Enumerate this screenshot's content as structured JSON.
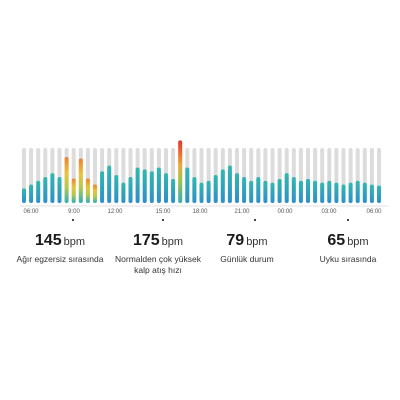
{
  "chart_data": {
    "type": "bar",
    "x_tick_labels": [
      "06:00",
      "9:00",
      "12:00",
      "15:00",
      "18:00",
      "21:00",
      "00:00",
      "03:00",
      "06:00"
    ],
    "values_bpm": [
      62,
      66,
      70,
      74,
      78,
      74,
      95,
      112,
      145,
      112,
      102,
      80,
      86,
      76,
      68,
      74,
      84,
      82,
      80,
      84,
      78,
      72,
      175,
      84,
      74,
      68,
      70,
      76,
      82,
      86,
      78,
      74,
      70,
      74,
      70,
      68,
      72,
      78,
      74,
      70,
      72,
      70,
      68,
      70,
      68,
      66,
      68,
      70,
      68,
      66,
      65
    ],
    "ymax_bpm": 175,
    "colors": {
      "track": "#dcdcdc",
      "normal_bottom": "#2e8fc9",
      "normal_top": "#32b8ae",
      "high_yellow": "#e8c43a",
      "high_orange": "#ee7f2d",
      "peak_red": "#e2352a"
    }
  },
  "stats": [
    {
      "value": "145",
      "unit": "bpm",
      "label": "Ağır egzersiz sırasında",
      "marker": true
    },
    {
      "value": "175",
      "unit": "bpm",
      "label": "Normalden çok yüksek kalp atış hızı",
      "marker": true
    },
    {
      "value": "79",
      "unit": "bpm",
      "label": "Günlük durum",
      "marker": true
    },
    {
      "value": "65",
      "unit": "bpm",
      "label": "Uyku sırasında",
      "marker": true
    }
  ]
}
